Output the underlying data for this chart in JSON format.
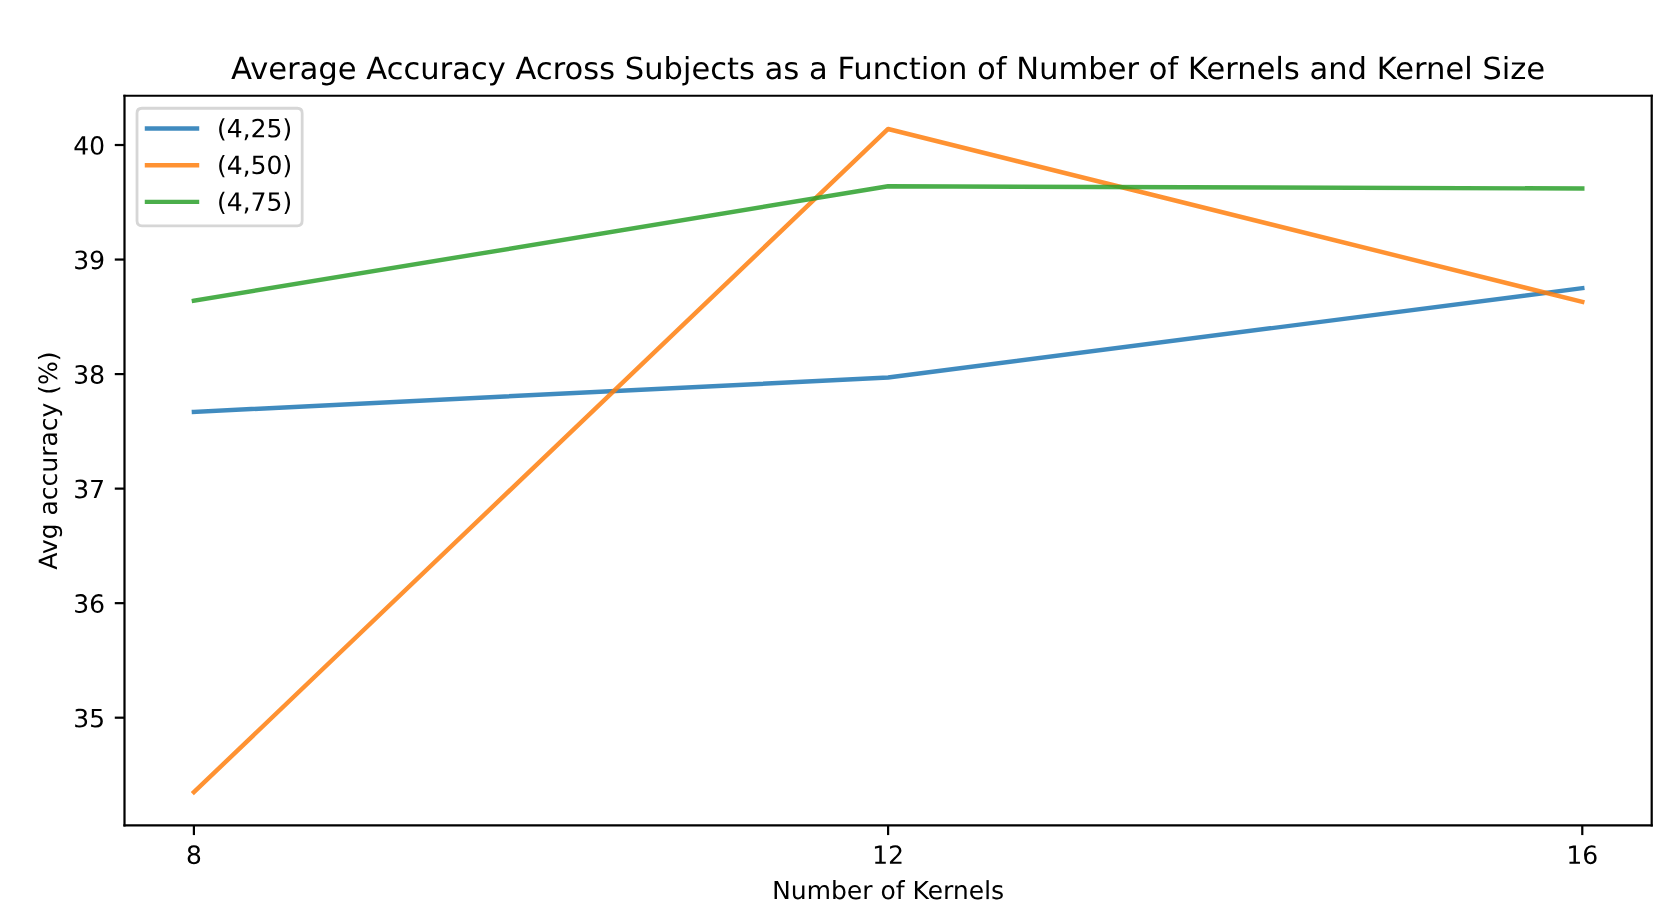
{
  "chart_data": {
    "type": "line",
    "title": "Average Accuracy Across Subjects as a Function of Number of Kernels and Kernel Size",
    "xlabel": "Number of Kernels",
    "ylabel": "Avg accuracy (%)",
    "x": [
      8,
      12,
      16
    ],
    "series": [
      {
        "name": "(4,25)",
        "color": "#1f77b4",
        "values": [
          37.67,
          37.97,
          38.75
        ]
      },
      {
        "name": "(4,50)",
        "color": "#ff7f0e",
        "values": [
          34.35,
          40.14,
          38.63
        ]
      },
      {
        "name": "(4,75)",
        "color": "#2ca02c",
        "values": [
          38.64,
          39.64,
          39.62
        ]
      }
    ],
    "xlim": [
      7.6,
      16.4
    ],
    "xticks": [
      8,
      12,
      16
    ],
    "ylim": [
      34.06,
      40.43
    ],
    "yticks": [
      35,
      36,
      37,
      38,
      39,
      40
    ],
    "legend": "top left",
    "grid": false
  }
}
